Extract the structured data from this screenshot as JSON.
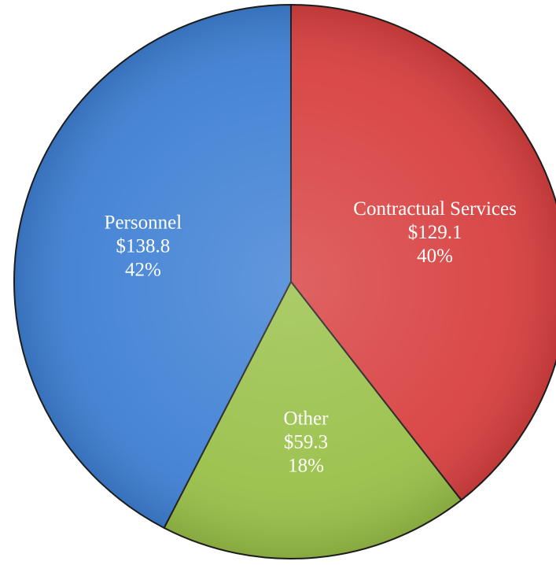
{
  "chart_data": {
    "type": "pie",
    "title": "",
    "slices": [
      {
        "label": "Contractual Services",
        "value_text": "$129.1",
        "percent_text": "40%",
        "value": 129.1,
        "color": "#d84040"
      },
      {
        "label": "Other",
        "value_text": "$59.3",
        "percent_text": "18%",
        "value": 59.3,
        "color": "#99c048"
      },
      {
        "label": "Personnel",
        "value_text": "$138.8",
        "percent_text": "42%",
        "value": 138.8,
        "color": "#3f80d4"
      }
    ],
    "start_angle_deg": 0,
    "direction": "clockwise",
    "legend": "none",
    "labels_inside": true
  }
}
